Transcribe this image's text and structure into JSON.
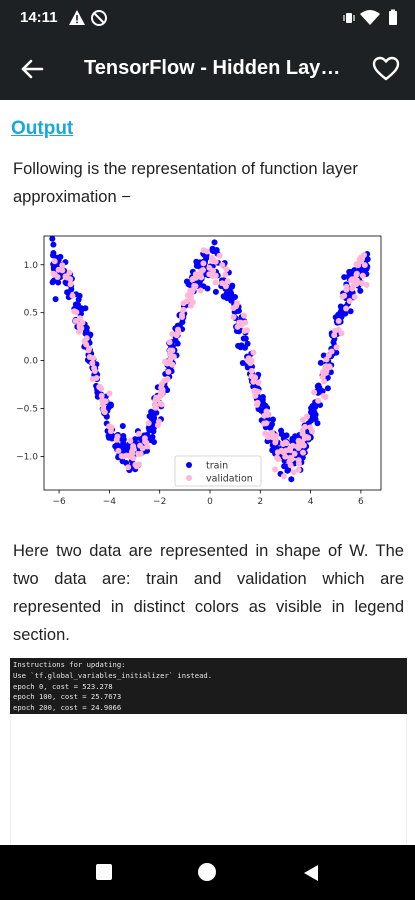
{
  "status_bar": {
    "time": "14:11",
    "icons_left": [
      "warning-icon",
      "do-not-disturb-icon"
    ],
    "icons_right": [
      "vibrate-icon",
      "wifi-icon",
      "battery-icon"
    ]
  },
  "app_bar": {
    "title": "TensorFlow - Hidden Layer Perceptron",
    "back_icon": "arrow-left-icon",
    "favorite_icon": "heart-outline-icon"
  },
  "content": {
    "heading": "Output",
    "intro": "Following is the representation of function layer approximation −",
    "description": "Here two data are represented in shape of W. The two data are: train and validation which are represented in distinct colors as visible in legend section.",
    "console_lines": [
      "Instructions for updating:",
      "Use `tf.global_variables_initializer` instead.",
      "epoch 0, cost = 523.278",
      "epoch 100, cost = 25.7673",
      "epoch 200, cost = 24.9066"
    ]
  },
  "chart_data": {
    "type": "scatter",
    "function": "cos(x)",
    "xlim": [
      -6.6,
      6.8
    ],
    "ylim": [
      -1.35,
      1.3
    ],
    "x_ticks": [
      -6,
      -4,
      -2,
      0,
      2,
      4,
      6
    ],
    "y_ticks": [
      1.0,
      0.5,
      0.0,
      -0.5,
      -1.0
    ],
    "x_tick_labels": [
      "−6",
      "−4",
      "−2",
      "0",
      "2",
      "4",
      "6"
    ],
    "y_tick_labels": [
      "1.0",
      "0.5",
      "0.0",
      "−0.5",
      "−1.0"
    ],
    "x_range_data": [
      -6.28,
      6.28
    ],
    "noise": 0.1,
    "grid": false,
    "legend_position": "lower-right",
    "series": [
      {
        "name": "train",
        "color": "#0000ff",
        "n_points": 700
      },
      {
        "name": "validation",
        "color": "#ffb6d9",
        "n_points": 300
      }
    ]
  },
  "nav_bar": {
    "buttons": [
      "recents-square-icon",
      "home-circle-icon",
      "back-triangle-icon"
    ]
  }
}
